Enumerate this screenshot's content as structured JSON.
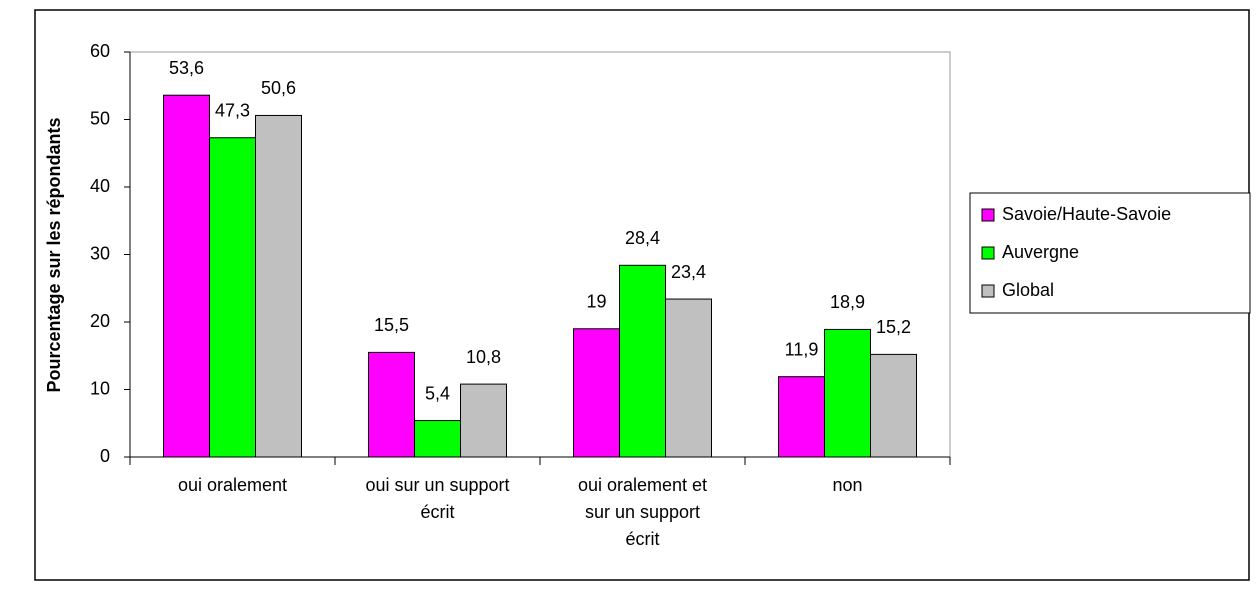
{
  "chart_data": {
    "type": "bar",
    "y_axis_label": "Pourcentage sur les répondants",
    "categories": [
      "oui oralement",
      "oui sur un support écrit",
      "oui oralement et sur un support écrit",
      "non"
    ],
    "series": [
      {
        "name": "Savoie/Haute-Savoie",
        "color": "#ff00ff",
        "values": [
          53.6,
          15.5,
          19,
          11.9
        ],
        "value_labels": [
          "53,6",
          "15,5",
          "19",
          "11,9"
        ]
      },
      {
        "name": "Auvergne",
        "color": "#00ff00",
        "values": [
          47.3,
          5.4,
          28.4,
          18.9
        ],
        "value_labels": [
          "47,3",
          "5,4",
          "28,4",
          "18,9"
        ]
      },
      {
        "name": "Global",
        "color": "#c0c0c0",
        "values": [
          50.6,
          10.8,
          23.4,
          15.2
        ],
        "value_labels": [
          "50,6",
          "10,8",
          "23,4",
          "15,2"
        ]
      }
    ],
    "ylim": [
      0,
      60
    ],
    "yticks": [
      0,
      10,
      20,
      30,
      40,
      50,
      60
    ],
    "legend": "right"
  }
}
